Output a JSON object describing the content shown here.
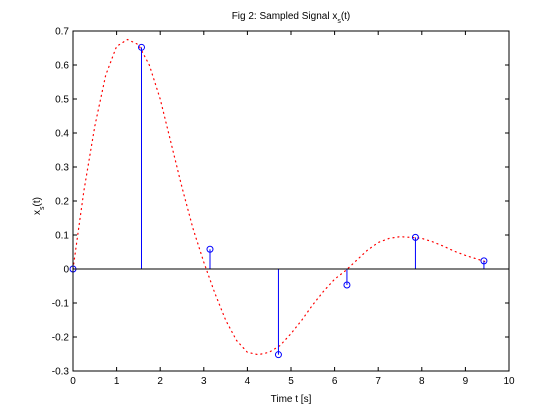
{
  "chart_data": {
    "type": "scatter",
    "title_main": "Fig 2: Sampled Signal x",
    "title_sub": "s",
    "title_tail": "(t)",
    "xlabel": "Time t [s]",
    "ylabel_main": "x",
    "ylabel_sub": "s",
    "ylabel_tail": "(t)",
    "xlim": [
      0,
      10
    ],
    "ylim": [
      -0.3,
      0.7
    ],
    "x_ticks": [
      "0",
      "1",
      "2",
      "3",
      "4",
      "5",
      "6",
      "7",
      "8",
      "9",
      "10"
    ],
    "y_ticks": [
      "-0.3",
      "-0.2",
      "-0.1",
      "0",
      "0.1",
      "0.2",
      "0.3",
      "0.4",
      "0.5",
      "0.6",
      "0.7"
    ],
    "grid": false,
    "series": [
      {
        "kind": "stem",
        "x": [
          0,
          1.571,
          3.142,
          4.712,
          6.283,
          7.854,
          9.425
        ],
        "y": [
          0,
          0.652,
          0.058,
          -0.252,
          -0.047,
          0.093,
          0.024
        ],
        "color": "#0000ff"
      },
      {
        "kind": "dotted-line",
        "x": [
          0,
          0.25,
          0.5,
          0.75,
          1.0,
          1.25,
          1.5,
          1.75,
          2.0,
          2.25,
          2.5,
          2.75,
          3.0,
          3.25,
          3.5,
          3.75,
          4.0,
          4.25,
          4.5,
          4.75,
          5.0,
          5.25,
          5.5,
          5.75,
          6.0,
          6.25,
          6.5,
          6.75,
          7.0,
          7.25,
          7.5,
          7.75,
          8.0,
          8.25,
          8.5,
          8.75,
          9.0,
          9.25,
          9.5
        ],
        "y": [
          0,
          0.23,
          0.42,
          0.57,
          0.655,
          0.675,
          0.66,
          0.6,
          0.5,
          0.37,
          0.24,
          0.12,
          0.02,
          -0.07,
          -0.15,
          -0.21,
          -0.245,
          -0.252,
          -0.245,
          -0.225,
          -0.19,
          -0.15,
          -0.105,
          -0.065,
          -0.03,
          -0.005,
          0.025,
          0.055,
          0.078,
          0.09,
          0.095,
          0.093,
          0.09,
          0.08,
          0.067,
          0.052,
          0.04,
          0.03,
          0.02
        ],
        "color": "#ff0000"
      }
    ]
  }
}
